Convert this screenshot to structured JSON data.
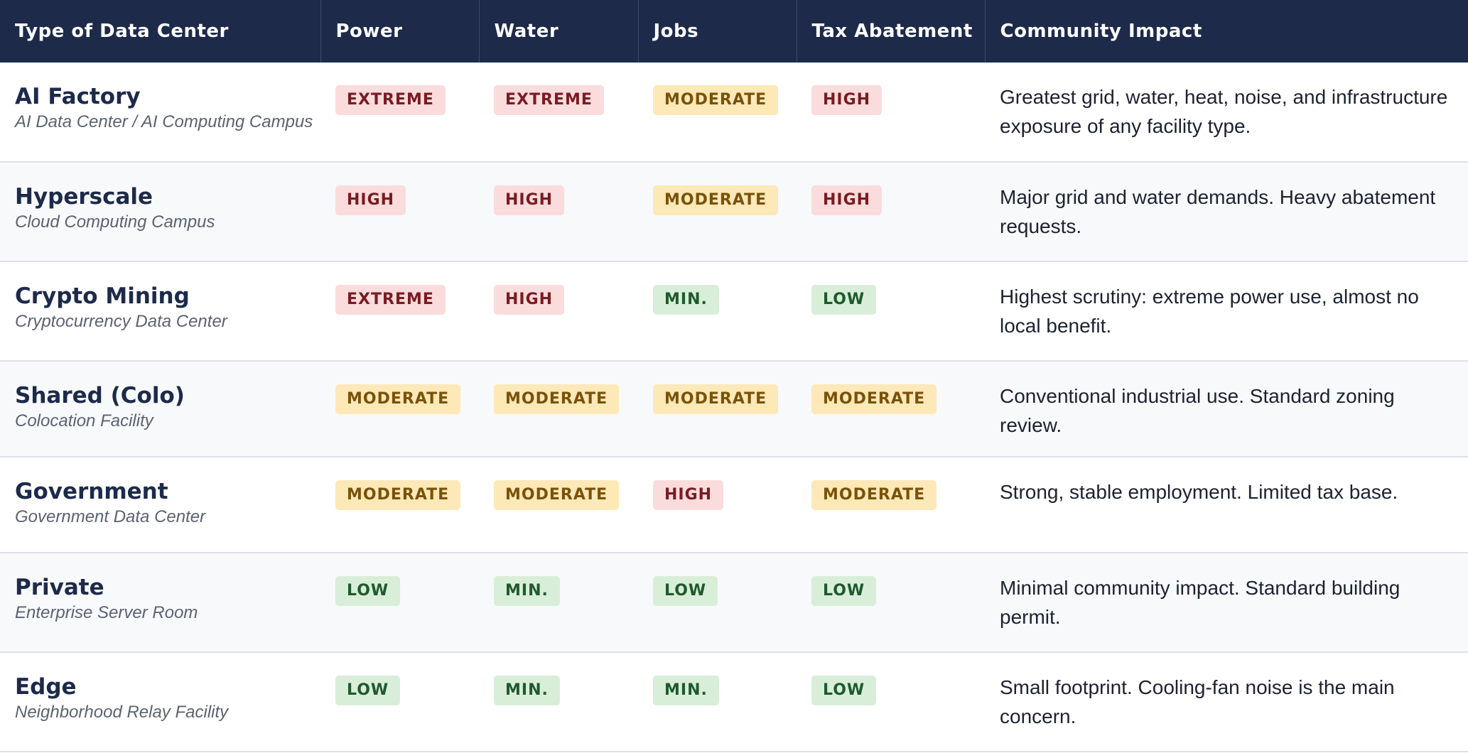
{
  "headers": [
    "Type of Data Center",
    "Power",
    "Water",
    "Jobs",
    "Tax Abatement",
    "Community Impact"
  ],
  "rows": [
    {
      "name": "AI Factory",
      "sub": "AI Data Center / AI Computing Campus",
      "power": "EXTREME",
      "water": "EXTREME",
      "jobs": "MODERATE",
      "tax": "HIGH",
      "impact": "Greatest grid, water, heat, noise, and infrastructure exposure of any facility type."
    },
    {
      "name": "Hyperscale",
      "sub": "Cloud Computing Campus",
      "power": "HIGH",
      "water": "HIGH",
      "jobs": "MODERATE",
      "tax": "HIGH",
      "impact": "Major grid and water demands. Heavy abatement requests."
    },
    {
      "name": "Crypto Mining",
      "sub": "Cryptocurrency Data Center",
      "power": "EXTREME",
      "water": "HIGH",
      "jobs": "MIN.",
      "tax": "LOW",
      "impact": "Highest scrutiny: extreme power use, almost no local benefit."
    },
    {
      "name": "Shared (Colo)",
      "sub": "Colocation Facility",
      "power": "MODERATE",
      "water": "MODERATE",
      "jobs": "MODERATE",
      "tax": "MODERATE",
      "impact": "Conventional industrial use. Standard zoning review."
    },
    {
      "name": "Government",
      "sub": "Government Data Center",
      "power": "MODERATE",
      "water": "MODERATE",
      "jobs": "HIGH",
      "tax": "MODERATE",
      "impact": "Strong, stable employment. Limited tax base."
    },
    {
      "name": "Private",
      "sub": "Enterprise Server Room",
      "power": "LOW",
      "water": "MIN.",
      "jobs": "LOW",
      "tax": "LOW",
      "impact": "Minimal community impact. Standard building permit."
    },
    {
      "name": "Edge",
      "sub": "Neighborhood Relay Facility",
      "power": "LOW",
      "water": "MIN.",
      "jobs": "MIN.",
      "tax": "LOW",
      "impact": "Small footprint. Cooling-fan noise is the main concern."
    }
  ],
  "colors": {
    "header_bg": "#1d2a4a",
    "red_badge": "#fadcdc",
    "amber_badge": "#fde8b8",
    "green_badge": "#d9eed9"
  }
}
